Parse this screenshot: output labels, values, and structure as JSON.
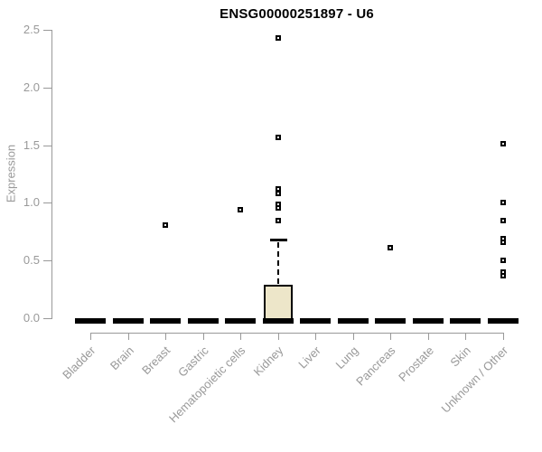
{
  "chart_data": {
    "type": "boxplot",
    "title": "ENSG00000251897 - U6",
    "ylabel": "Expression",
    "xlabel": "",
    "ylim": [
      0.0,
      2.5
    ],
    "yticks": [
      0.0,
      0.5,
      1.0,
      1.5,
      2.0,
      2.5
    ],
    "grid": false,
    "legend": false,
    "colors": {
      "box_fill": "#EDE6C9",
      "box_border": "#000000",
      "axis": "#999999",
      "tick_text": "#999999",
      "title_text": "#000000",
      "outlier": "#000000"
    },
    "categories": [
      "Bladder",
      "Brain",
      "Breast",
      "Gastric",
      "Hematopoietic cells",
      "Kidney",
      "Liver",
      "Lung",
      "Pancreas",
      "Prostate",
      "Skin",
      "Unknown / Other"
    ],
    "boxes": [
      {
        "label": "Bladder",
        "whisker_low": 0,
        "q1": 0,
        "median": 0,
        "q3": 0,
        "whisker_high": 0,
        "outliers": []
      },
      {
        "label": "Brain",
        "whisker_low": 0,
        "q1": 0,
        "median": 0,
        "q3": 0,
        "whisker_high": 0,
        "outliers": []
      },
      {
        "label": "Breast",
        "whisker_low": 0,
        "q1": 0,
        "median": 0,
        "q3": 0,
        "whisker_high": 0,
        "outliers": [
          0.81
        ]
      },
      {
        "label": "Gastric",
        "whisker_low": 0,
        "q1": 0,
        "median": 0,
        "q3": 0,
        "whisker_high": 0,
        "outliers": []
      },
      {
        "label": "Hematopoietic cells",
        "whisker_low": 0,
        "q1": 0,
        "median": 0,
        "q3": 0,
        "whisker_high": 0,
        "outliers": [
          0.94
        ]
      },
      {
        "label": "Kidney",
        "whisker_low": 0,
        "q1": 0,
        "median": 0,
        "q3": 0.29,
        "whisker_high": 0.68,
        "outliers": [
          0.85,
          0.96,
          0.99,
          1.08,
          1.12,
          1.57,
          2.43
        ]
      },
      {
        "label": "Liver",
        "whisker_low": 0,
        "q1": 0,
        "median": 0,
        "q3": 0,
        "whisker_high": 0,
        "outliers": []
      },
      {
        "label": "Lung",
        "whisker_low": 0,
        "q1": 0,
        "median": 0,
        "q3": 0,
        "whisker_high": 0,
        "outliers": []
      },
      {
        "label": "Pancreas",
        "whisker_low": 0,
        "q1": 0,
        "median": 0,
        "q3": 0,
        "whisker_high": 0,
        "outliers": [
          0.61
        ]
      },
      {
        "label": "Prostate",
        "whisker_low": 0,
        "q1": 0,
        "median": 0,
        "q3": 0,
        "whisker_high": 0,
        "outliers": []
      },
      {
        "label": "Skin",
        "whisker_low": 0,
        "q1": 0,
        "median": 0,
        "q3": 0,
        "whisker_high": 0,
        "outliers": []
      },
      {
        "label": "Unknown / Other",
        "whisker_low": 0,
        "q1": 0,
        "median": 0,
        "q3": 0,
        "whisker_high": 0,
        "outliers": [
          0.37,
          0.4,
          0.5,
          0.66,
          0.69,
          0.85,
          1.0,
          1.51
        ]
      }
    ]
  }
}
